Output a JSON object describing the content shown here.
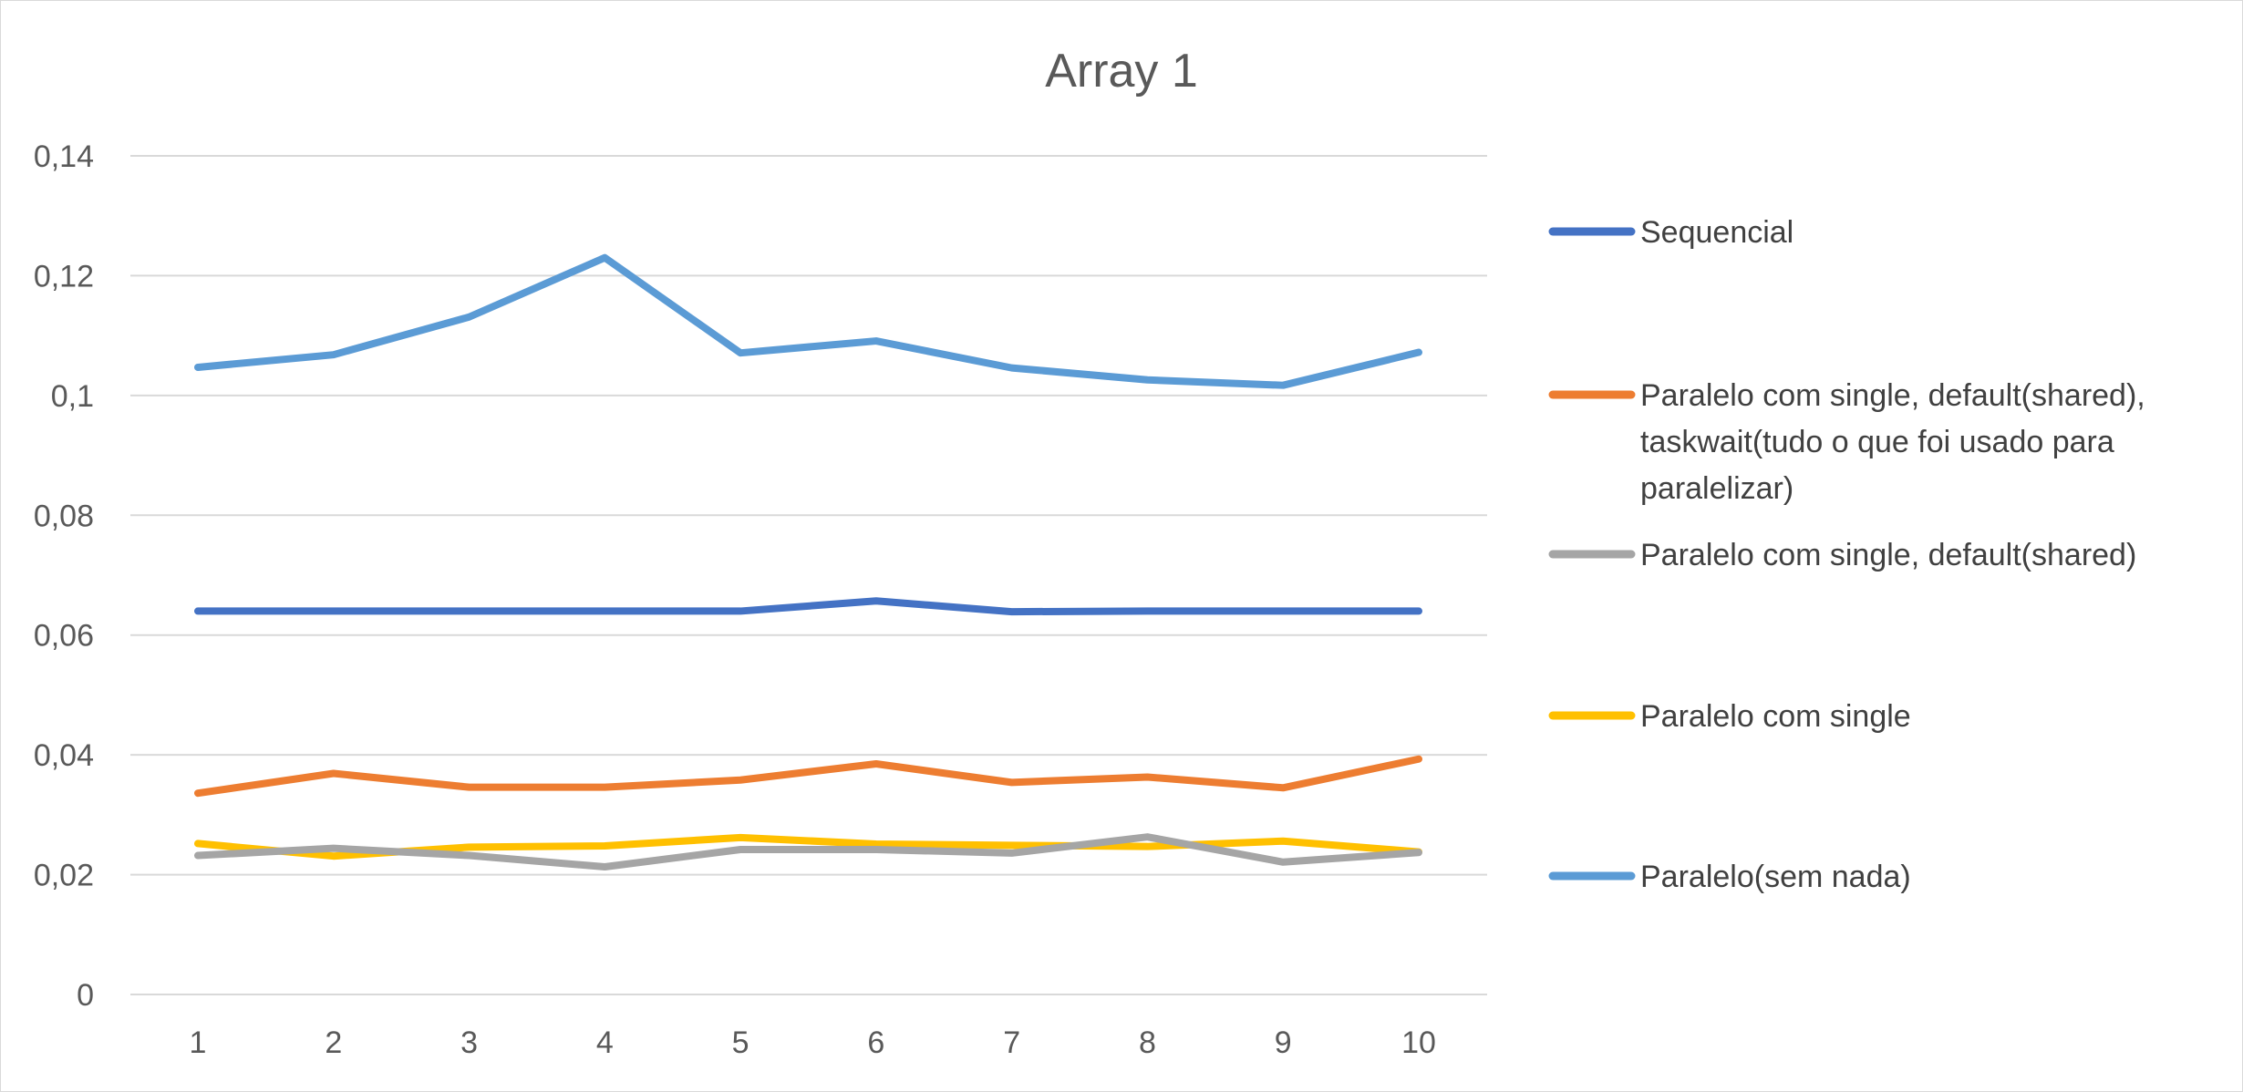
{
  "chart_data": {
    "type": "line",
    "title": "Array 1",
    "xlabel": "",
    "ylabel": "",
    "ylim": [
      0,
      0.14
    ],
    "y_ticks": [
      0,
      0.02,
      0.04,
      0.06,
      0.08,
      0.1,
      0.12,
      0.14
    ],
    "y_tick_labels": [
      "0",
      "0,02",
      "0,04",
      "0,06",
      "0,08",
      "0,1",
      "0,12",
      "0,14"
    ],
    "categories": [
      "1",
      "2",
      "3",
      "4",
      "5",
      "6",
      "7",
      "8",
      "9",
      "10"
    ],
    "grid": "horizontal",
    "legend_position": "right",
    "series": [
      {
        "name": "Sequencial",
        "color": "#4472C4",
        "values": [
          0.064,
          0.064,
          0.064,
          0.064,
          0.064,
          0.0657,
          0.0639,
          0.064,
          0.064,
          0.064
        ]
      },
      {
        "name": "Paralelo com single, default(shared), taskwait(tudo o que foi usado para paralelizar)",
        "legend_lines": [
          "Paralelo com single, default(shared),",
          "taskwait(tudo o que foi usado para",
          "paralelizar)"
        ],
        "color": "#ED7D31",
        "values": [
          0.0336,
          0.0369,
          0.0346,
          0.0346,
          0.0358,
          0.0385,
          0.0354,
          0.0363,
          0.0345,
          0.0393
        ]
      },
      {
        "name": "Paralelo com single, default(shared)",
        "color": "#A5A5A5",
        "values": [
          0.0232,
          0.0244,
          0.0232,
          0.0213,
          0.0242,
          0.0242,
          0.0236,
          0.0263,
          0.0221,
          0.0237
        ]
      },
      {
        "name": "Paralelo com single",
        "color": "#FFC000",
        "values": [
          0.0252,
          0.0231,
          0.0246,
          0.0248,
          0.0262,
          0.0251,
          0.0249,
          0.0247,
          0.0256,
          0.0238
        ]
      },
      {
        "name": "Paralelo(sem nada)",
        "color": "#5B9BD5",
        "values": [
          0.1047,
          0.1068,
          0.1131,
          0.123,
          0.1071,
          0.1091,
          0.1046,
          0.1026,
          0.1017,
          0.1072
        ]
      }
    ]
  }
}
